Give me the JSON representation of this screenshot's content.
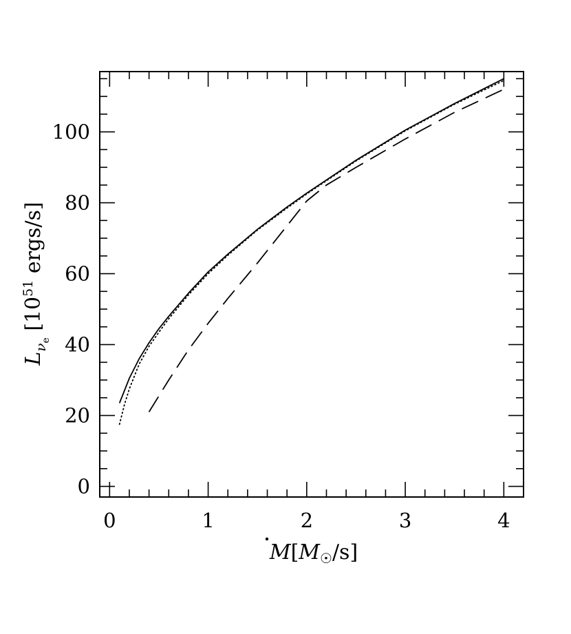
{
  "chart_data": {
    "type": "line",
    "title": "",
    "xlabel": "Ṁ[M☉/s]",
    "ylabel": "Lνe [10^51 ergs/s]",
    "xlim": [
      -0.1,
      4.2
    ],
    "ylim": [
      -3,
      117
    ],
    "xticks_major": [
      0,
      1,
      2,
      3,
      4
    ],
    "yticks_major": [
      0,
      20,
      40,
      60,
      80,
      100
    ],
    "grid": false,
    "legend": "none",
    "series": [
      {
        "style": "solid",
        "x": [
          0.1,
          0.2,
          0.3,
          0.4,
          0.5,
          0.6,
          0.8,
          1.0,
          1.2,
          1.5,
          1.8,
          2.0,
          2.5,
          3.0,
          3.5,
          4.0
        ],
        "y": [
          23.5,
          30.5,
          36.0,
          40.5,
          44.5,
          48.0,
          54.5,
          60.5,
          65.5,
          72.5,
          78.8,
          82.7,
          92.0,
          100.5,
          108.0,
          115.0
        ]
      },
      {
        "style": "dotted",
        "x": [
          0.1,
          0.15,
          0.2,
          0.3,
          0.4,
          0.5,
          0.6,
          0.8,
          1.0,
          1.2,
          1.5,
          1.8,
          2.0,
          2.5,
          3.0,
          3.5,
          4.0
        ],
        "y": [
          17.5,
          23.0,
          27.5,
          34.5,
          39.5,
          43.5,
          47.3,
          54.0,
          60.0,
          65.2,
          72.3,
          78.5,
          82.5,
          91.8,
          100.3,
          107.8,
          114.5
        ]
      },
      {
        "style": "dashed",
        "x": [
          0.4,
          0.6,
          0.8,
          1.0,
          1.2,
          1.5,
          1.8,
          2.0,
          2.2,
          2.5,
          3.0,
          3.5,
          4.0
        ],
        "y": [
          21.0,
          30.0,
          38.5,
          46.0,
          53.0,
          63.0,
          73.5,
          80.5,
          85.0,
          90.0,
          98.0,
          105.5,
          112.0
        ]
      }
    ]
  }
}
